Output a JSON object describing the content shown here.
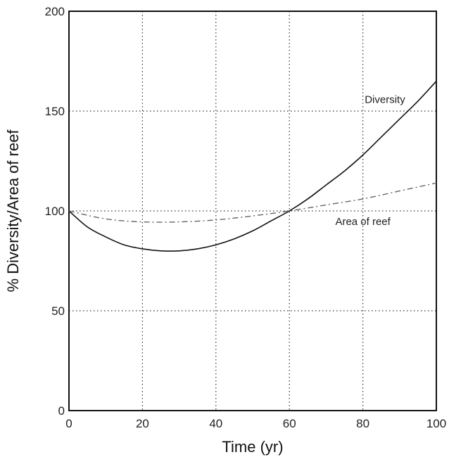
{
  "chart_data": {
    "type": "line",
    "title": "",
    "xlabel": "Time (yr)",
    "ylabel": "% Diversity/Area of reef",
    "xlim": [
      0,
      100
    ],
    "ylim": [
      0,
      200
    ],
    "xticks": [
      0,
      20,
      40,
      60,
      80,
      100
    ],
    "yticks": [
      0,
      50,
      100,
      150,
      200
    ],
    "grid": true,
    "series": [
      {
        "name": "Diversity",
        "style": "solid",
        "color": "#111111",
        "x": [
          0,
          5,
          10,
          15,
          20,
          25,
          30,
          35,
          40,
          45,
          50,
          55,
          60,
          65,
          70,
          75,
          80,
          85,
          90,
          95,
          100
        ],
        "y": [
          100,
          92,
          87,
          83,
          81,
          80,
          80,
          81,
          83,
          86,
          90,
          95,
          100,
          106,
          113,
          120,
          128,
          137,
          146,
          155,
          165
        ]
      },
      {
        "name": "Area of reef",
        "style": "dashed",
        "color": "#666666",
        "x": [
          0,
          10,
          20,
          30,
          40,
          50,
          60,
          70,
          80,
          90,
          100
        ],
        "y": [
          100,
          96,
          94.5,
          94.5,
          95.5,
          97.5,
          100,
          103,
          106,
          110,
          114
        ]
      }
    ]
  }
}
